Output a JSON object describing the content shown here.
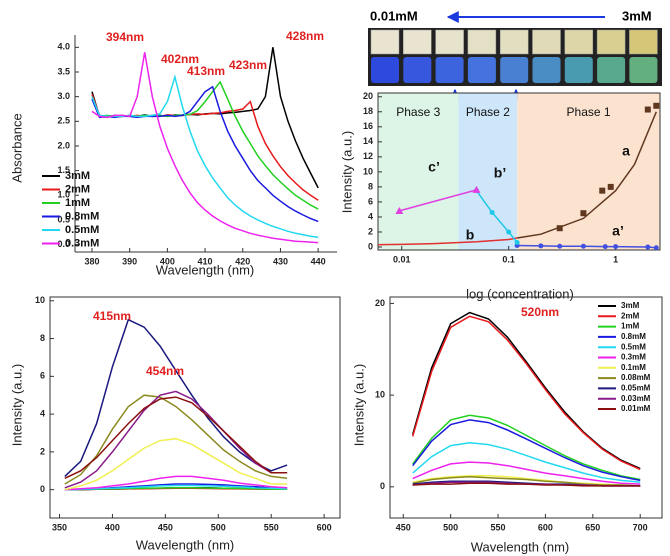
{
  "photo": {
    "low_label": "0.01mM",
    "high_label": "3mM"
  },
  "chart_data": [
    {
      "type": "line",
      "xlabel": "Wavelength (nm)",
      "ylabel": "Absorbance",
      "x": [
        380,
        382,
        384,
        386,
        388,
        390,
        392,
        394,
        396,
        398,
        400,
        402,
        404,
        406,
        408,
        410,
        412,
        414,
        416,
        418,
        420,
        422,
        424,
        426,
        428,
        430,
        432,
        434,
        436,
        438,
        440
      ],
      "xlim": [
        375.5,
        445
      ],
      "ylim": [
        -0.15,
        4.25
      ],
      "xticks": [
        380,
        390,
        400,
        410,
        420,
        430,
        440
      ],
      "yticks": [
        {
          "value": 0,
          "label": "0.0"
        },
        {
          "value": 0.5,
          "label": "0.5"
        },
        {
          "value": 1,
          "label": "1.0"
        },
        {
          "value": 1.5,
          "label": "1.5"
        },
        {
          "value": 2,
          "label": "2.0"
        },
        {
          "value": 2.5,
          "label": "2.5"
        },
        {
          "value": 3,
          "label": "3.0"
        },
        {
          "value": 3.5,
          "label": "3.5"
        },
        {
          "value": 4,
          "label": "4.0"
        }
      ],
      "annotations": [
        "394nm",
        "402nm",
        "413nm",
        "423nm",
        "428nm"
      ],
      "annotation_color": "#e02020",
      "legend": "left",
      "series": [
        {
          "name": "3mM",
          "color": "#000000",
          "values": [
            3.1,
            2.6,
            2.58,
            2.62,
            2.6,
            2.62,
            2.6,
            2.63,
            2.6,
            2.62,
            2.6,
            2.63,
            2.62,
            2.64,
            2.63,
            2.65,
            2.66,
            2.65,
            2.67,
            2.68,
            2.7,
            2.72,
            2.75,
            3.0,
            4.0,
            3.0,
            2.5,
            2.1,
            1.75,
            1.45,
            1.15
          ]
        },
        {
          "name": "2mM",
          "color": "#e8191c",
          "values": [
            3.05,
            2.62,
            2.6,
            2.6,
            2.62,
            2.6,
            2.62,
            2.6,
            2.62,
            2.6,
            2.63,
            2.62,
            2.62,
            2.64,
            2.65,
            2.64,
            2.66,
            2.67,
            2.7,
            2.72,
            2.75,
            2.9,
            2.4,
            2.05,
            1.8,
            1.58,
            1.4,
            1.25,
            1.11,
            1.0,
            0.9
          ]
        },
        {
          "name": "1mM",
          "color": "#22d022",
          "values": [
            3.0,
            2.6,
            2.62,
            2.6,
            2.6,
            2.62,
            2.6,
            2.62,
            2.6,
            2.62,
            2.6,
            2.62,
            2.63,
            2.64,
            2.72,
            2.9,
            3.1,
            3.3,
            2.95,
            2.6,
            2.3,
            2.05,
            1.8,
            1.6,
            1.42,
            1.27,
            1.13,
            1.0,
            0.9,
            0.8,
            0.72
          ]
        },
        {
          "name": "0.8mM",
          "color": "#1a1ae0",
          "values": [
            2.95,
            2.58,
            2.6,
            2.58,
            2.6,
            2.6,
            2.58,
            2.6,
            2.6,
            2.6,
            2.62,
            2.6,
            2.62,
            2.7,
            2.9,
            3.1,
            3.2,
            2.7,
            2.3,
            2.0,
            1.75,
            1.5,
            1.3,
            1.15,
            1.0,
            0.88,
            0.77,
            0.68,
            0.6,
            0.53,
            0.47
          ]
        },
        {
          "name": "0.5mM",
          "color": "#22d8f0",
          "values": [
            3.0,
            2.62,
            2.6,
            2.6,
            2.6,
            2.62,
            2.6,
            2.6,
            2.62,
            2.65,
            2.9,
            3.4,
            2.8,
            2.3,
            1.9,
            1.6,
            1.35,
            1.15,
            0.95,
            0.8,
            0.68,
            0.58,
            0.5,
            0.43,
            0.37,
            0.32,
            0.27,
            0.23,
            0.2,
            0.17,
            0.15
          ]
        },
        {
          "name": "0.3mM",
          "color": "#ee22ee",
          "values": [
            2.7,
            2.6,
            2.58,
            2.62,
            2.62,
            2.6,
            3.0,
            3.9,
            3.0,
            2.4,
            1.95,
            1.6,
            1.3,
            1.05,
            0.85,
            0.7,
            0.58,
            0.48,
            0.4,
            0.33,
            0.28,
            0.23,
            0.19,
            0.16,
            0.13,
            0.11,
            0.09,
            0.07,
            0.06,
            0.05,
            0.04
          ]
        }
      ]
    },
    {
      "type": "line",
      "xlabel": "log (concentration)",
      "ylabel": "Intensity (a.u.)",
      "log_x": true,
      "xlim": [
        0.006,
        2.6
      ],
      "ylim": [
        -0.4,
        20.5
      ],
      "xticks": [
        0.01,
        0.1,
        1
      ],
      "yticks": [
        0,
        2,
        4,
        6,
        8,
        10,
        12,
        14,
        16,
        18,
        20
      ],
      "regions": [
        {
          "label": "Phase 3",
          "from": 0.006,
          "to": 0.034,
          "color": "#dcf5e6"
        },
        {
          "label": "Phase 2",
          "from": 0.034,
          "to": 0.12,
          "color": "#cde6fa"
        },
        {
          "label": "Phase 1",
          "from": 0.12,
          "to": 2.6,
          "color": "#fbe3cf"
        }
      ],
      "series": [
        {
          "name": "a",
          "color": "#603820",
          "marker": "square",
          "line": false,
          "x": [
            0.3,
            0.5,
            0.75,
            0.9,
            2.0,
            2.4
          ],
          "values": [
            2.5,
            4.5,
            7.5,
            8.0,
            18.3,
            18.8
          ]
        },
        {
          "color": "#603820",
          "x": [
            0.12,
            0.2,
            0.5,
            1,
            1.5,
            2.4
          ],
          "values": [
            1.2,
            1.7,
            3.8,
            7.5,
            11,
            18
          ]
        },
        {
          "name": "a’",
          "color": "#4050e0",
          "marker": "circle",
          "x": [
            0.12,
            0.2,
            0.3,
            0.5,
            0.8,
            1.0,
            2.0,
            2.4
          ],
          "values": [
            0.2,
            0.15,
            0.1,
            0.1,
            0.05,
            0.05,
            0,
            -0.1
          ]
        },
        {
          "name": "b",
          "color": "#e03030",
          "x": [
            0.006,
            0.01,
            0.02,
            0.05,
            0.1,
            0.12
          ],
          "values": [
            0.3,
            0.35,
            0.45,
            0.7,
            1.0,
            1.2
          ]
        },
        {
          "name": "b’",
          "color": "#20c8e8",
          "marker": "circle",
          "x": [
            0.05,
            0.07,
            0.1,
            0.12
          ],
          "values": [
            7.5,
            4.6,
            2.0,
            0.6
          ]
        },
        {
          "name": "c’",
          "color": "#e040e0",
          "marker": "triangle",
          "x": [
            0.0095,
            0.05
          ],
          "values": [
            4.8,
            7.6
          ]
        }
      ]
    },
    {
      "type": "line",
      "xlabel": "Wavelength (nm)",
      "ylabel": "Intensity (a.u.)",
      "x": [
        355,
        370,
        385,
        400,
        415,
        430,
        445,
        460,
        475,
        490,
        505,
        520,
        535,
        550,
        565
      ],
      "xlim": [
        341,
        615
      ],
      "ylim": [
        -1.5,
        10.2
      ],
      "xticks": [
        350,
        400,
        450,
        500,
        550,
        600
      ],
      "yticks": [
        0,
        2,
        4,
        6,
        8,
        10
      ],
      "annotations": [
        "415nm",
        "454nm"
      ],
      "annotation_color": "#e02020",
      "series": [
        {
          "color": "#000000",
          "values": [
            0,
            0,
            0.02,
            0.03,
            0.05,
            0.06,
            0.08,
            0.1,
            0.1,
            0.1,
            0.08,
            0.06,
            0.05,
            0.04,
            0.03
          ]
        },
        {
          "color": "#e8191c",
          "values": [
            0,
            0.01,
            0.02,
            0.03,
            0.04,
            0.05,
            0.06,
            0.07,
            0.07,
            0.06,
            0.05,
            0.04,
            0.03,
            0.02,
            0.02
          ]
        },
        {
          "color": "#22d022",
          "values": [
            0,
            0.01,
            0.03,
            0.04,
            0.06,
            0.08,
            0.09,
            0.1,
            0.1,
            0.09,
            0.08,
            0.06,
            0.05,
            0.03,
            0.02
          ]
        },
        {
          "color": "#1a1ae0",
          "values": [
            0,
            0.02,
            0.05,
            0.1,
            0.15,
            0.2,
            0.25,
            0.3,
            0.3,
            0.28,
            0.25,
            0.2,
            0.15,
            0.1,
            0.1
          ]
        },
        {
          "color": "#22d8f0",
          "values": [
            0,
            0.02,
            0.05,
            0.08,
            0.1,
            0.15,
            0.2,
            0.22,
            0.22,
            0.2,
            0.18,
            0.15,
            0.1,
            0.08,
            0.05
          ]
        },
        {
          "color": "#ee22ee",
          "values": [
            0,
            0.05,
            0.1,
            0.2,
            0.3,
            0.45,
            0.6,
            0.7,
            0.7,
            0.6,
            0.5,
            0.35,
            0.25,
            0.15,
            0.1
          ]
        },
        {
          "color": "#f0f050",
          "values": [
            0.0,
            0.2,
            0.5,
            1.0,
            1.6,
            2.2,
            2.6,
            2.7,
            2.4,
            1.9,
            1.4,
            0.9,
            0.6,
            0.3,
            0.3
          ]
        },
        {
          "color": "#8a8a20",
          "values": [
            0.3,
            0.8,
            1.8,
            3.2,
            4.4,
            5.0,
            4.9,
            4.4,
            3.7,
            2.9,
            2.1,
            1.5,
            1.0,
            0.7,
            0.6
          ]
        },
        {
          "color": "#1a1a80",
          "values": [
            0.7,
            1.5,
            3.5,
            6.5,
            9.0,
            8.6,
            7.6,
            6.3,
            5.0,
            3.8,
            2.8,
            2.0,
            1.4,
            1.0,
            1.3
          ]
        },
        {
          "color": "#8a1a8a",
          "values": [
            0.1,
            0.4,
            1.0,
            2.0,
            3.1,
            4.2,
            5.0,
            5.2,
            4.8,
            4.0,
            3.1,
            2.2,
            1.4,
            0.9,
            0.9
          ]
        },
        {
          "color": "#8a1010",
          "values": [
            0.6,
            1.0,
            1.7,
            2.6,
            3.5,
            4.3,
            4.8,
            4.9,
            4.6,
            3.9,
            3.1,
            2.3,
            1.5,
            0.9,
            0.9
          ]
        }
      ]
    },
    {
      "type": "line",
      "xlabel": "Wavelength (nm)",
      "ylabel": "Intensity (a.u.)",
      "x": [
        460,
        480,
        500,
        520,
        540,
        560,
        580,
        600,
        620,
        640,
        660,
        680,
        700
      ],
      "xlim": [
        436,
        723
      ],
      "ylim": [
        -3.4,
        20.7
      ],
      "xticks": [
        450,
        500,
        550,
        600,
        650,
        700
      ],
      "yticks": [
        0,
        10,
        20
      ],
      "annotations": [
        "520nm"
      ],
      "annotation_color": "#e02020",
      "legend": "upper right",
      "series": [
        {
          "name": "3mM",
          "color": "#000000",
          "values": [
            5.7,
            13,
            17.8,
            19,
            18.3,
            16.3,
            13.6,
            10.8,
            8.2,
            6.0,
            4.2,
            2.9,
            2.0
          ]
        },
        {
          "name": "2mM",
          "color": "#e8191c",
          "values": [
            5.5,
            12.6,
            17.4,
            18.6,
            18.0,
            16.0,
            13.4,
            10.6,
            8.0,
            5.9,
            4.1,
            2.8,
            1.9
          ]
        },
        {
          "name": "1mM",
          "color": "#22d022",
          "values": [
            2.5,
            5.3,
            7.3,
            7.8,
            7.5,
            6.7,
            5.6,
            4.5,
            3.4,
            2.5,
            1.8,
            1.2,
            0.8
          ]
        },
        {
          "name": "0.8mM",
          "color": "#1a1ae0",
          "values": [
            2.3,
            5.0,
            6.8,
            7.3,
            7.0,
            6.2,
            5.2,
            4.2,
            3.2,
            2.3,
            1.6,
            1.1,
            0.7
          ]
        },
        {
          "name": "0.5mM",
          "color": "#22d8f0",
          "values": [
            1.5,
            3.3,
            4.5,
            4.8,
            4.6,
            4.1,
            3.4,
            2.7,
            2.1,
            1.5,
            1.0,
            0.7,
            0.5
          ]
        },
        {
          "name": "0.3mM",
          "color": "#ee22ee",
          "values": [
            0.9,
            1.8,
            2.5,
            2.7,
            2.6,
            2.3,
            1.9,
            1.5,
            1.2,
            0.9,
            0.6,
            0.4,
            0.3
          ]
        },
        {
          "name": "0.1mM",
          "color": "#f0f050",
          "values": [
            0.5,
            0.9,
            1.1,
            1.2,
            1.2,
            1.1,
            0.9,
            0.7,
            0.5,
            0.4,
            0.3,
            0.2,
            0.1
          ]
        },
        {
          "name": "0.08mM",
          "color": "#8a8a20",
          "values": [
            0.4,
            0.8,
            1.0,
            1.1,
            1.0,
            0.9,
            0.8,
            0.6,
            0.5,
            0.3,
            0.2,
            0.2,
            0.1
          ]
        },
        {
          "name": "0.05mM",
          "color": "#1a1a80",
          "values": [
            0.3,
            0.5,
            0.6,
            0.6,
            0.6,
            0.5,
            0.4,
            0.3,
            0.3,
            0.2,
            0.1,
            0.1,
            0.1
          ]
        },
        {
          "name": "0.03mM",
          "color": "#8a1a8a",
          "values": [
            0.2,
            0.4,
            0.5,
            0.5,
            0.5,
            0.4,
            0.3,
            0.3,
            0.2,
            0.2,
            0.1,
            0.1,
            0.1
          ]
        },
        {
          "name": "0.01mM",
          "color": "#8a1010",
          "values": [
            0.2,
            0.3,
            0.3,
            0.4,
            0.4,
            0.3,
            0.3,
            0.2,
            0.2,
            0.1,
            0.1,
            0.1,
            0.1
          ]
        }
      ]
    }
  ]
}
